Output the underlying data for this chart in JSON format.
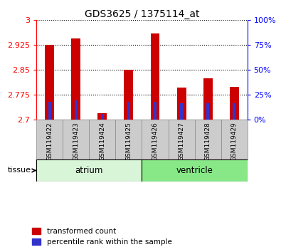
{
  "title": "GDS3625 / 1375114_at",
  "samples": [
    "GSM119422",
    "GSM119423",
    "GSM119424",
    "GSM119425",
    "GSM119426",
    "GSM119427",
    "GSM119428",
    "GSM119429"
  ],
  "red_tops": [
    2.925,
    2.945,
    2.72,
    2.851,
    2.96,
    2.797,
    2.825,
    2.8
  ],
  "blue_tops": [
    2.755,
    2.758,
    2.718,
    2.753,
    2.754,
    2.749,
    2.749,
    2.749
  ],
  "baseline": 2.7,
  "ylim_left": [
    2.7,
    3.0
  ],
  "ylim_right": [
    0,
    100
  ],
  "yticks_left": [
    2.7,
    2.775,
    2.85,
    2.925,
    3.0
  ],
  "ytick_labels_left": [
    "2.7",
    "2.775",
    "2.85",
    "2.925",
    "3"
  ],
  "yticks_right": [
    0,
    25,
    50,
    75,
    100
  ],
  "ytick_labels_right": [
    "0%",
    "25%",
    "50%",
    "75%",
    "100%"
  ],
  "groups": [
    {
      "label": "atrium",
      "samples": [
        0,
        1,
        2,
        3
      ],
      "color": "#d8f5d8"
    },
    {
      "label": "ventricle",
      "samples": [
        4,
        5,
        6,
        7
      ],
      "color": "#88e888"
    }
  ],
  "tissue_label": "tissue",
  "red_bar_width": 0.35,
  "blue_bar_width": 0.12,
  "red_color": "#cc0000",
  "blue_color": "#3333cc",
  "legend_items": [
    "transformed count",
    "percentile rank within the sample"
  ],
  "xlim": [
    -0.5,
    7.5
  ]
}
